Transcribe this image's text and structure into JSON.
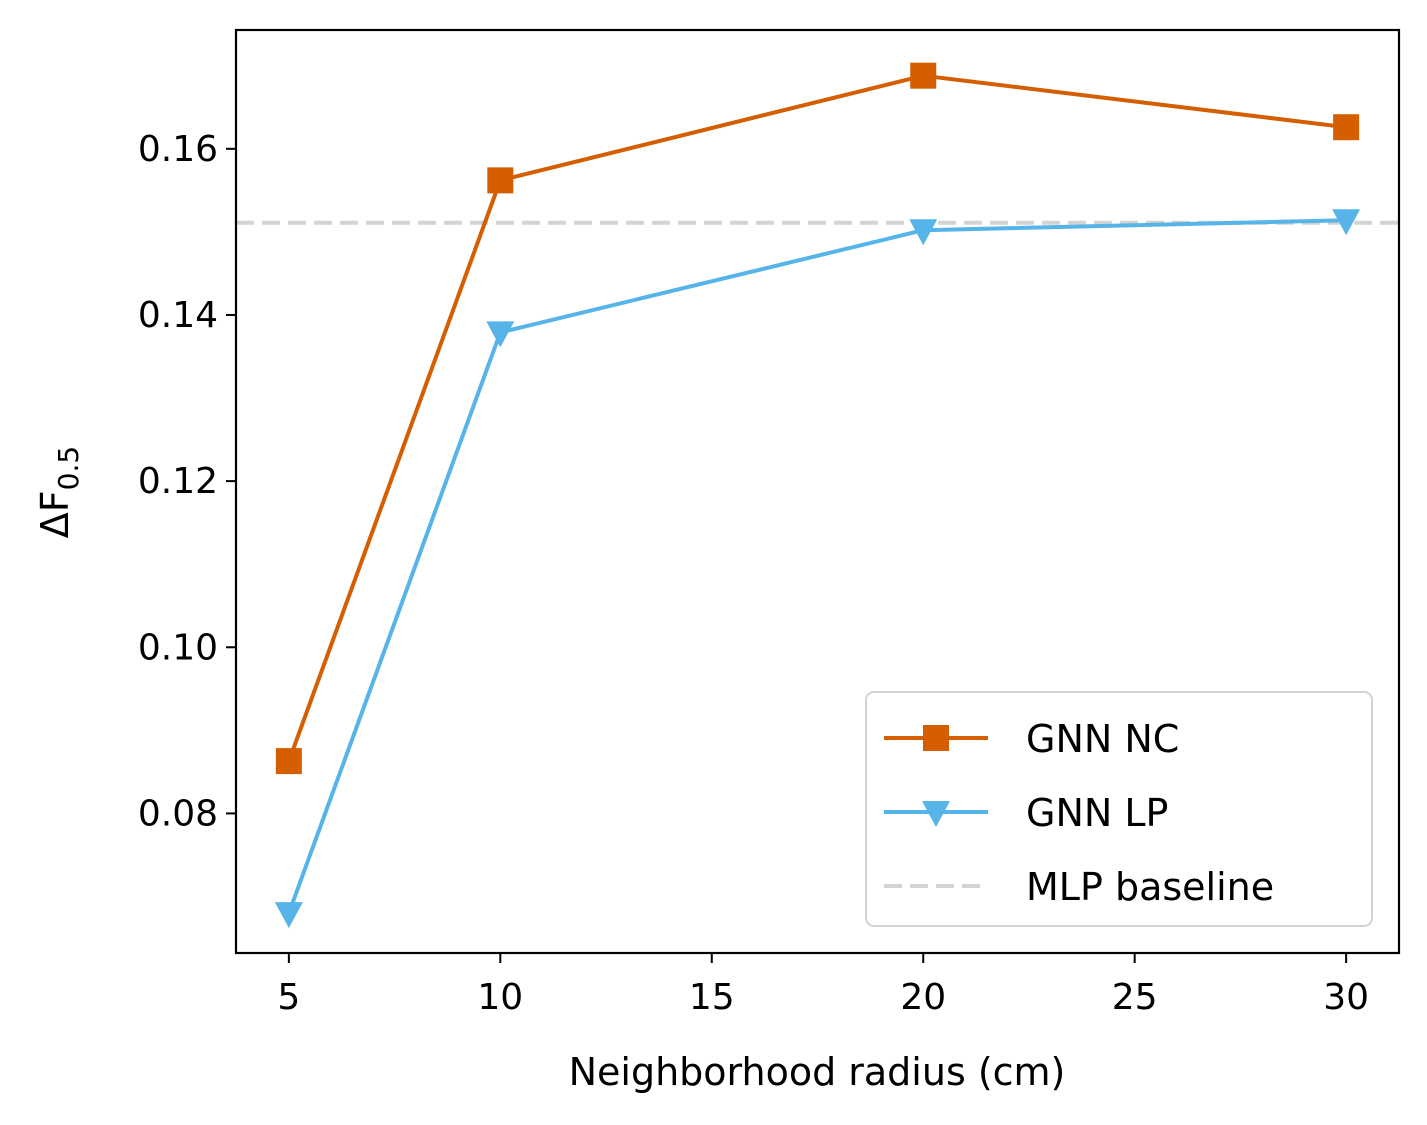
{
  "chart_data": {
    "type": "line",
    "title": "",
    "xlabel": "Neighborhood radius (cm)",
    "ylabel_main": "ΔF",
    "ylabel_sub": "0.5",
    "xlim": [
      3.75,
      31.25
    ],
    "ylim": [
      0.0632,
      0.1743
    ],
    "x_ticks": [
      5,
      10,
      15,
      20,
      25,
      30
    ],
    "x_tick_labels": [
      "5",
      "10",
      "15",
      "20",
      "25",
      "30"
    ],
    "y_ticks": [
      0.08,
      0.1,
      0.12,
      0.14,
      0.16
    ],
    "y_tick_labels": [
      "0.08",
      "0.10",
      "0.12",
      "0.14",
      "0.16"
    ],
    "grid": false,
    "legend_position": "lower-right",
    "x": [
      5,
      10,
      20,
      30
    ],
    "series": [
      {
        "name": "GNN NC",
        "values": [
          0.0863,
          0.1562,
          0.1688,
          0.1626
        ],
        "color": "#d55e00",
        "marker": "square",
        "line_style": "solid"
      },
      {
        "name": "GNN LP",
        "values": [
          0.068,
          0.1379,
          0.1502,
          0.1514
        ],
        "color": "#56b4e9",
        "marker": "triangle-down",
        "line_style": "solid"
      }
    ],
    "reference_lines": [
      {
        "name": "MLP baseline",
        "y": 0.1511,
        "color": "#d3d3d3",
        "line_style": "dashed"
      }
    ]
  }
}
